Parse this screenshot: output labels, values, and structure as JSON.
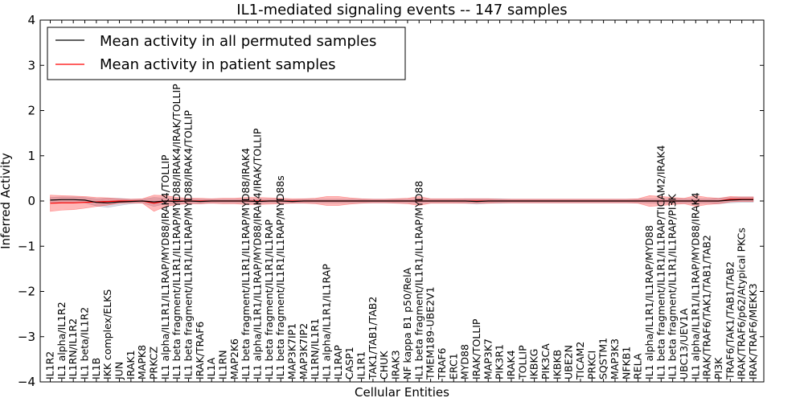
{
  "chart_data": {
    "type": "line",
    "title": "IL1-mediated signaling events -- 147 samples",
    "xlabel": "Cellular Entities",
    "ylabel": "Inferred Activity",
    "ylim": [
      -4,
      4
    ],
    "yticks": [
      "−4",
      "−3",
      "−2",
      "−1",
      "0",
      "1",
      "2",
      "3",
      "4"
    ],
    "legend_position": "top-left",
    "categories": [
      "IL1R2",
      "IL1 alpha/IL1R2",
      "IL1RN/IL1R2",
      "IL1 beta/IL1R2",
      "IL1B",
      "IKK complex/ELKS",
      "JUN",
      "IRAK1",
      "MAPK8",
      "PRKCZ",
      "IL1 alpha/IL1R1/IL1RAP/MYD88/IRAK4/TOLLIP",
      "IL1 beta fragment/IL1R1/IL1RAP/MYD88/IRAK4/IRAK/TOLLIP",
      "IL1 beta fragment/IL1R1/IL1RAP/MYD88/IRAK4/TOLLIP",
      "IRAK/TRAF6",
      "IL1A",
      "IL1RN",
      "MAP2K6",
      "IL1 beta fragment/IL1R1/IL1RAP/MYD88/IRAK4",
      "IL1 alpha/IL1R1/IL1RAP/MYD88/IRAK4/IRAK/TOLLIP",
      "IL1 beta fragment/IL1R1/IL1RAP",
      "IL1 beta fragment/IL1R1/IL1RAP/MYD88s",
      "MAP3K7IP1",
      "MAP3K7IP2",
      "IL1RN/IL1R1",
      "IL1 alpha/IL1R1/IL1RAP",
      "IL1RAP",
      "CASP1",
      "IL1R1",
      "TAK1/TAB1/TAB2",
      "CHUK",
      "IRAK3",
      "NF kappa B1 p50/RelA",
      "IL1 beta fragment/IL1R1/IL1RAP/MYD88",
      "TMEM189-UBE2V1",
      "TRAF6",
      "ERC1",
      "MYD88",
      "IRAK/TOLLIP",
      "MAP3K7",
      "PIK3R1",
      "IRAK4",
      "TOLLIP",
      "IKBKG",
      "PIK3CA",
      "IKBKB",
      "UBE2N",
      "TICAM2",
      "PRKCI",
      "SQSTM1",
      "MAP3K3",
      "NFKB1",
      "RELA",
      "IL1 alpha/IL1R1/IL1RAP/MYD88",
      "IL1 beta fragment/IL1R1/IL1RAP/TICAM2/IRAK4",
      "IL1 beta fragment/IL1R1/IL1RAP/PI3K",
      "UBC13/UEV1A",
      "IL1 alpha/IL1R1/IL1RAP/MYD88/IRAK4",
      "IRAK/TRAF6/TAK1/TAB1/TAB2",
      "PI3K",
      "TRAF6/TAK1/TAB1/TAB2",
      "IRAK/TRAF6/p62/Atypical PKCs",
      "IRAK/TRAF6/MEKK3"
    ],
    "series": [
      {
        "name": "Mean activity in all permuted samples",
        "color": "#000000",
        "values": [
          0.02,
          0.03,
          0.03,
          0.02,
          -0.03,
          -0.04,
          -0.02,
          -0.01,
          0.0,
          -0.02,
          0.0,
          -0.01,
          0.0,
          -0.01,
          0.0,
          0.0,
          0.0,
          0.0,
          -0.01,
          0.0,
          0.0,
          -0.01,
          0.0,
          0.0,
          0.0,
          0.0,
          0.0,
          0.0,
          0.0,
          0.0,
          0.0,
          0.0,
          0.0,
          0.0,
          0.0,
          0.0,
          0.0,
          -0.01,
          0.0,
          0.0,
          0.0,
          0.0,
          0.0,
          0.0,
          0.0,
          0.0,
          0.0,
          0.0,
          0.0,
          0.0,
          0.0,
          0.0,
          0.0,
          0.0,
          0.0,
          0.0,
          0.0,
          0.0,
          0.0,
          0.02,
          0.03,
          0.03
        ],
        "band": [
          0.06,
          0.06,
          0.06,
          0.06,
          0.08,
          0.1,
          0.08,
          0.05,
          0.04,
          0.1,
          0.06,
          0.06,
          0.05,
          0.05,
          0.04,
          0.04,
          0.04,
          0.04,
          0.05,
          0.04,
          0.04,
          0.04,
          0.04,
          0.04,
          0.04,
          0.04,
          0.04,
          0.04,
          0.04,
          0.04,
          0.04,
          0.04,
          0.05,
          0.04,
          0.04,
          0.04,
          0.05,
          0.06,
          0.05,
          0.05,
          0.04,
          0.04,
          0.04,
          0.04,
          0.04,
          0.04,
          0.04,
          0.04,
          0.04,
          0.04,
          0.04,
          0.04,
          0.05,
          0.05,
          0.05,
          0.05,
          0.05,
          0.05,
          0.06,
          0.06,
          0.06,
          0.06
        ]
      },
      {
        "name": "Mean activity in patient samples",
        "color": "#ff0000",
        "values": [
          -0.05,
          -0.04,
          -0.04,
          -0.03,
          -0.02,
          -0.01,
          0.0,
          0.0,
          0.0,
          -0.05,
          0.0,
          0.0,
          0.0,
          0.0,
          0.0,
          0.0,
          0.0,
          0.0,
          0.0,
          0.0,
          0.0,
          0.0,
          0.0,
          0.0,
          0.0,
          0.0,
          0.0,
          0.0,
          0.0,
          0.0,
          0.0,
          0.0,
          0.0,
          0.0,
          0.0,
          0.0,
          0.0,
          0.0,
          0.0,
          0.0,
          0.0,
          0.0,
          0.0,
          0.0,
          0.0,
          0.0,
          0.0,
          0.0,
          0.0,
          0.0,
          0.0,
          0.0,
          0.0,
          0.0,
          0.0,
          0.0,
          0.0,
          0.0,
          0.0,
          0.04,
          0.04,
          0.04
        ],
        "band": [
          0.18,
          0.16,
          0.15,
          0.13,
          0.1,
          0.08,
          0.05,
          0.04,
          0.05,
          0.18,
          0.12,
          0.08,
          0.06,
          0.06,
          0.05,
          0.06,
          0.06,
          0.08,
          0.08,
          0.07,
          0.06,
          0.05,
          0.05,
          0.06,
          0.1,
          0.1,
          0.07,
          0.05,
          0.04,
          0.04,
          0.05,
          0.06,
          0.1,
          0.05,
          0.05,
          0.05,
          0.05,
          0.05,
          0.05,
          0.04,
          0.04,
          0.04,
          0.04,
          0.04,
          0.04,
          0.04,
          0.04,
          0.04,
          0.04,
          0.04,
          0.04,
          0.05,
          0.12,
          0.1,
          0.08,
          0.06,
          0.12,
          0.08,
          0.06,
          0.06,
          0.05,
          0.05
        ]
      }
    ]
  }
}
